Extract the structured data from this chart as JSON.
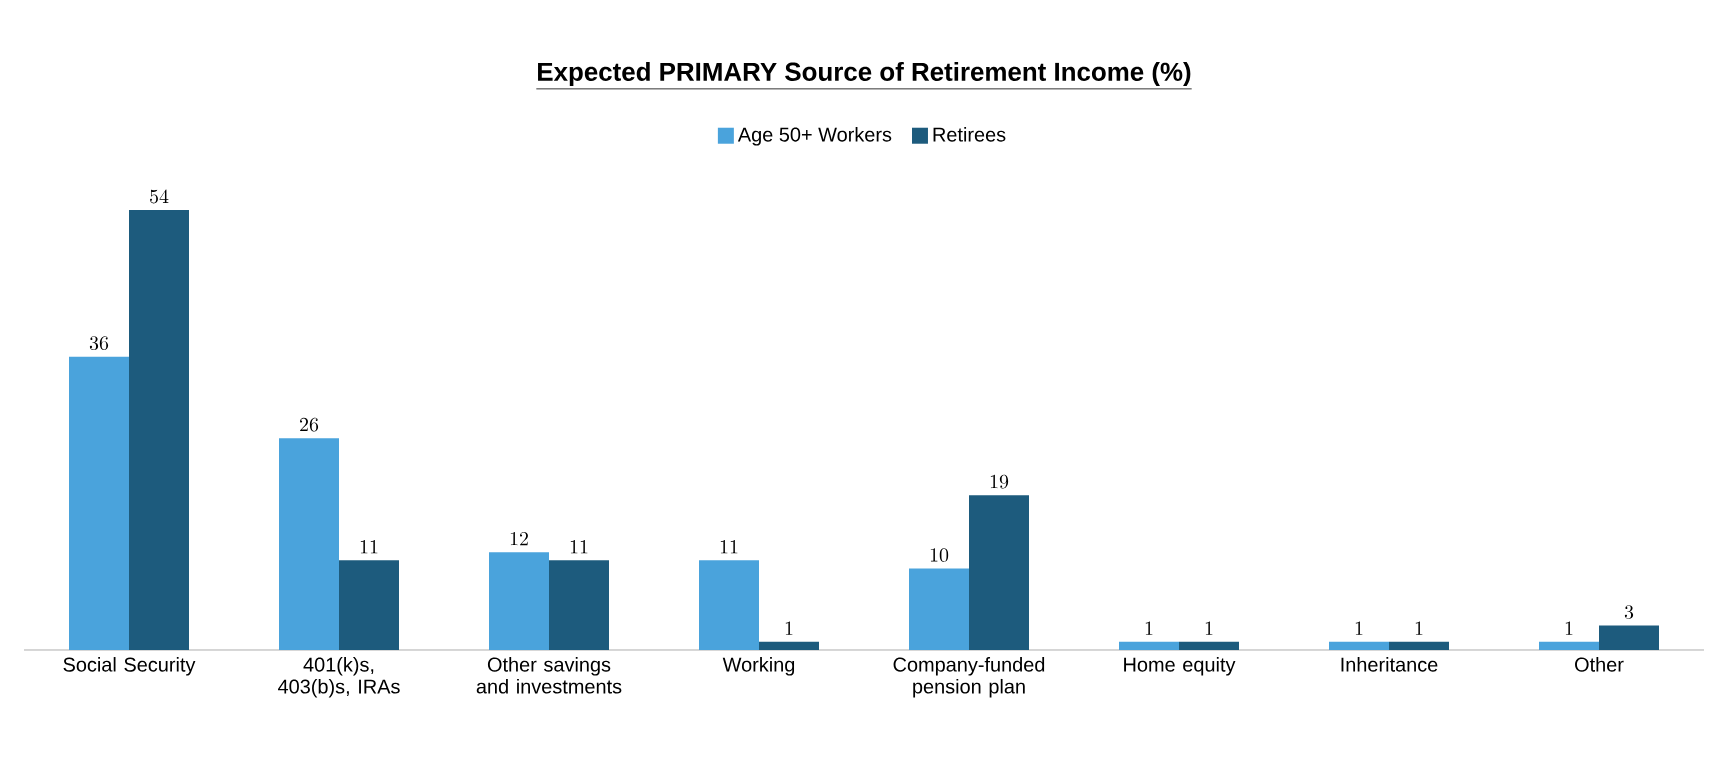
{
  "chart_data": {
    "type": "bar",
    "title": "Expected PRIMARY Source of Retirement Income (%)",
    "categories": [
      "Social Security",
      "401(k)s, 403(b)s, IRAs",
      "Other savings and investments",
      "Working",
      "Company-funded pension plan",
      "Home equity",
      "Inheritance",
      "Other"
    ],
    "series": [
      {
        "name": "Age 50+ Workers",
        "color": "#4aa3dc",
        "values": [
          36,
          26,
          12,
          11,
          10,
          1,
          1,
          1
        ]
      },
      {
        "name": "Retirees",
        "color": "#1d5b7d",
        "values": [
          54,
          11,
          11,
          1,
          19,
          1,
          1,
          3
        ]
      }
    ],
    "data_labels": true,
    "legend": "top"
  }
}
